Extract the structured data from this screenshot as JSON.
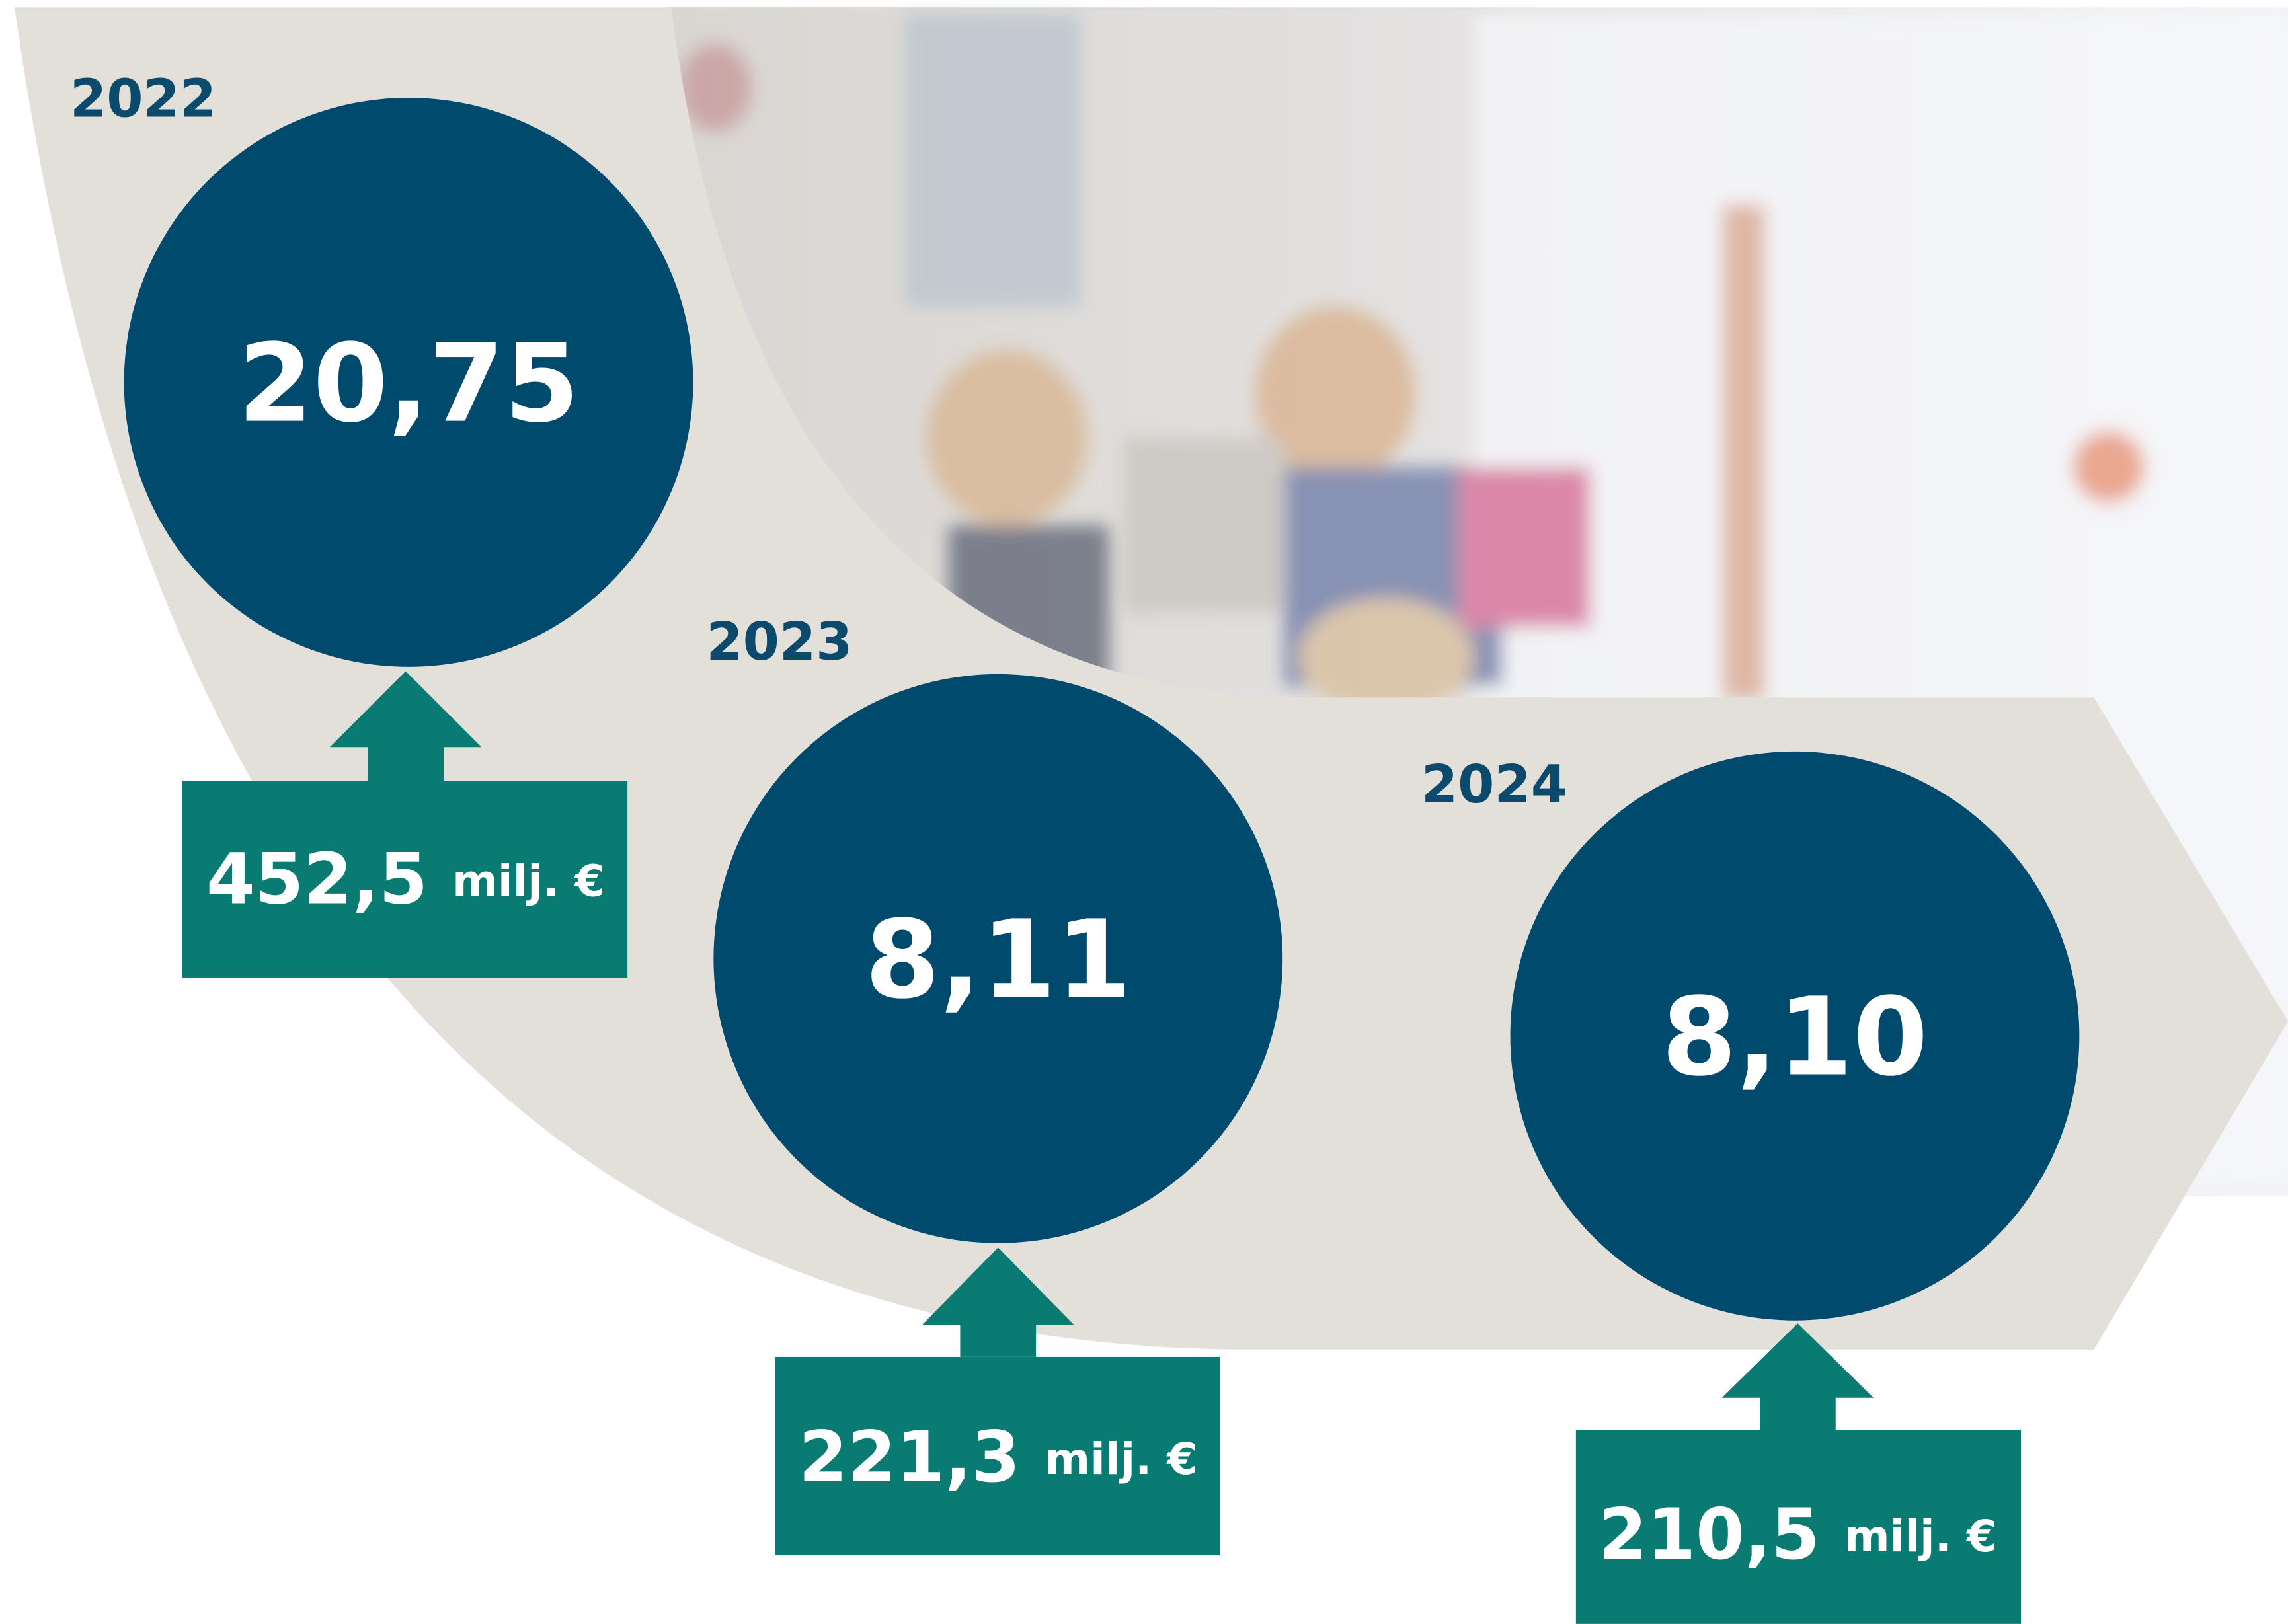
{
  "items": [
    {
      "year": "2022",
      "value": "20,75",
      "amount": "452,5",
      "unit": "milj. €"
    },
    {
      "year": "2023",
      "value": "8,11",
      "amount": "221,3",
      "unit": "milj. €"
    },
    {
      "year": "2024",
      "value": "8,10",
      "amount": "210,5",
      "unit": "milj. €"
    }
  ]
}
